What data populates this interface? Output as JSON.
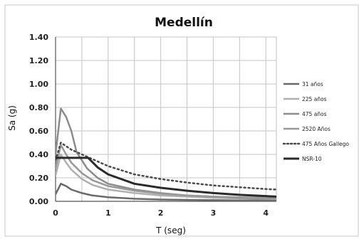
{
  "chart_data": {
    "type": "line",
    "title": "Medellín",
    "xlabel": "T (seg)",
    "ylabel": "Sa (g)",
    "xlim": [
      0,
      4.2
    ],
    "ylim": [
      0,
      1.4
    ],
    "x_ticks": [
      0,
      1,
      2,
      3,
      4
    ],
    "x_tick_labels": [
      "0",
      "1",
      "2",
      "3",
      "4"
    ],
    "y_ticks": [
      0,
      0.2,
      0.4,
      0.6,
      0.8,
      1.0,
      1.2,
      1.4
    ],
    "y_tick_labels": [
      "0.00",
      "0.20",
      "0.40",
      "0.60",
      "0.80",
      "1.00",
      "1.20",
      "1.40"
    ],
    "x_gridlines": [
      0,
      0.5,
      1,
      1.5,
      2,
      2.5,
      3,
      3.5,
      4
    ],
    "grid": true,
    "legend_position": "right",
    "series": [
      {
        "name": "31 años",
        "color": "#6a6a6a",
        "dash": "solid",
        "width": 2.5,
        "x": [
          0,
          0.1,
          0.2,
          0.3,
          0.5,
          0.7,
          1.0,
          1.5,
          2.0,
          2.5,
          3.0,
          3.5,
          4.2
        ],
        "y": [
          0.06,
          0.15,
          0.13,
          0.1,
          0.07,
          0.05,
          0.035,
          0.022,
          0.015,
          0.012,
          0.01,
          0.008,
          0.007
        ]
      },
      {
        "name": "225 años",
        "color": "#b0b0b0",
        "dash": "solid",
        "width": 2.5,
        "x": [
          0,
          0.1,
          0.2,
          0.3,
          0.5,
          0.7,
          1.0,
          1.5,
          2.0,
          2.5,
          3.0,
          3.5,
          4.2
        ],
        "y": [
          0.22,
          0.4,
          0.33,
          0.27,
          0.19,
          0.14,
          0.1,
          0.07,
          0.05,
          0.04,
          0.03,
          0.025,
          0.02
        ]
      },
      {
        "name": "475 años",
        "color": "#8c8c8c",
        "dash": "solid",
        "width": 2.5,
        "x": [
          0,
          0.1,
          0.2,
          0.3,
          0.4,
          0.6,
          0.8,
          1.0,
          1.5,
          2.0,
          2.5,
          3.0,
          3.5,
          4.2
        ],
        "y": [
          0.4,
          0.79,
          0.72,
          0.6,
          0.42,
          0.28,
          0.2,
          0.15,
          0.1,
          0.07,
          0.05,
          0.04,
          0.03,
          0.025
        ]
      },
      {
        "name": "2520 Años",
        "color": "#999999",
        "dash": "solid",
        "width": 2.5,
        "x": [
          0,
          0.1,
          0.2,
          0.3,
          0.5,
          0.7,
          1.0,
          1.5,
          2.0,
          2.5,
          3.0,
          3.5,
          4.2
        ],
        "y": [
          0.28,
          0.48,
          0.4,
          0.33,
          0.24,
          0.18,
          0.13,
          0.09,
          0.065,
          0.05,
          0.04,
          0.035,
          0.03
        ]
      },
      {
        "name": "475 Años Gallego",
        "color": "#4a4a4a",
        "dash": "dot",
        "width": 2.5,
        "x": [
          0,
          0.1,
          0.3,
          0.5,
          0.75,
          1.0,
          1.5,
          2.0,
          2.5,
          3.0,
          3.5,
          4.0,
          4.2
        ],
        "y": [
          0.35,
          0.5,
          0.44,
          0.4,
          0.35,
          0.3,
          0.23,
          0.19,
          0.16,
          0.135,
          0.12,
          0.105,
          0.1
        ]
      },
      {
        "name": "NSR-10",
        "color": "#2a2a2a",
        "dash": "solid",
        "width": 3,
        "x": [
          0,
          0.1,
          0.62,
          0.8,
          1.0,
          1.5,
          2.0,
          2.5,
          3.0,
          3.5,
          4.0,
          4.2
        ],
        "y": [
          0.37,
          0.37,
          0.37,
          0.29,
          0.23,
          0.15,
          0.115,
          0.09,
          0.07,
          0.055,
          0.045,
          0.04
        ]
      }
    ]
  }
}
